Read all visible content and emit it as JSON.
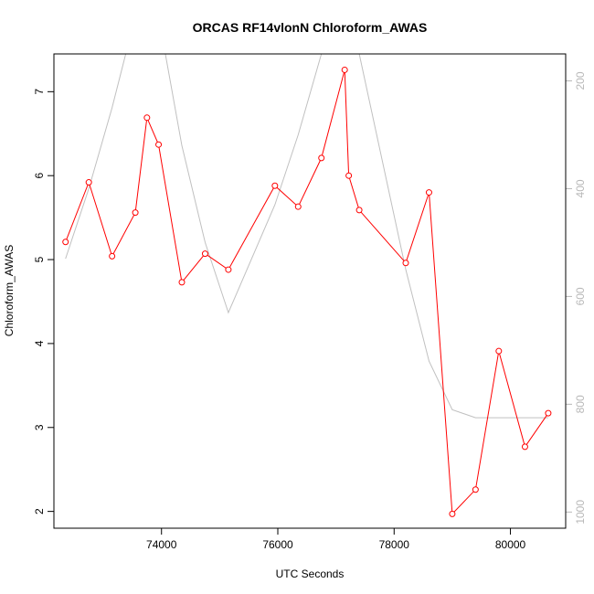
{
  "chart_data": {
    "type": "line",
    "title": "ORCAS RF14vlonN Chloroform_AWAS",
    "xlabel": "UTC Seconds",
    "ylabel": "Chloroform_AWAS",
    "xlim": [
      72150,
      80950
    ],
    "ylim": [
      1.8,
      7.45
    ],
    "x_ticks": [
      74000,
      76000,
      78000,
      80000
    ],
    "y_ticks": [
      2,
      3,
      4,
      5,
      6,
      7
    ],
    "y2_ticks": [
      200,
      400,
      600,
      800,
      1000
    ],
    "y2lim": [
      1030,
      150
    ],
    "y2_reversed": true,
    "grid": false,
    "series": [
      {
        "color": "#ff0000",
        "marker": "circle",
        "x": [
          72350,
          72750,
          73150,
          73550,
          73750,
          73950,
          74350,
          74750,
          75150,
          75950,
          76350,
          76750,
          77150,
          77220,
          77400,
          78200,
          78600,
          79000,
          79400,
          79800,
          80250,
          80650
        ],
        "y": [
          5.21,
          5.92,
          5.04,
          5.56,
          6.69,
          6.37,
          4.73,
          5.07,
          4.88,
          5.88,
          5.63,
          6.21,
          7.26,
          6.0,
          5.59,
          4.96,
          5.8,
          1.97,
          2.26,
          3.91,
          2.77,
          3.17
        ]
      },
      {
        "color": "#c0c0c0",
        "axis": "right",
        "x": [
          72350,
          72750,
          73150,
          73550,
          73750,
          73950,
          74350,
          74750,
          75150,
          75950,
          76350,
          76750,
          77150,
          77400,
          78200,
          78600,
          79000,
          79400,
          79800,
          80250,
          80650
        ],
        "y": [
          530,
          400,
          250,
          80,
          60,
          80,
          320,
          500,
          630,
          430,
          300,
          150,
          20,
          150,
          550,
          720,
          810,
          825,
          825,
          825,
          825
        ]
      }
    ]
  }
}
